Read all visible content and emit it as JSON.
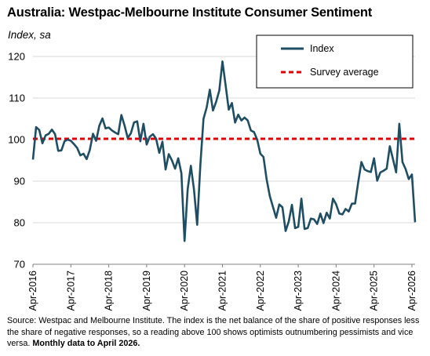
{
  "title": "Australia: Westpac-Melbourne Institute Consumer Sentiment",
  "subtitle": "Index, sa",
  "source_text": "Source: Westpac and Melbourne Institute.  The index is the net balance of the share of positive responses less the share of negative responses, so a reading above 100 shows optimists outnumbering pessimists and vice versa.",
  "source_bold": "Monthly data to April 2026.",
  "chart_data": {
    "type": "line",
    "ylim": [
      70,
      120
    ],
    "yticks": [
      70,
      80,
      90,
      100,
      110,
      120
    ],
    "x_start": "2016-04",
    "x_end": "2026-04",
    "xtick_labels": [
      "Apr-2016",
      "Apr-2017",
      "Apr-2018",
      "Apr-2019",
      "Apr-2020",
      "Apr-2021",
      "Apr-2022",
      "Apr-2023",
      "Apr-2024",
      "Apr-2025",
      "Apr-2026"
    ],
    "grid": true,
    "legend_position": "top-right",
    "colors": {
      "index": "#1f4e63",
      "average": "#e00000"
    },
    "series": [
      {
        "name": "Index",
        "values": [
          95.2,
          103.0,
          102.3,
          99.1,
          101.0,
          101.4,
          102.4,
          101.3,
          97.3,
          97.4,
          99.6,
          100.0,
          99.7,
          98.9,
          98.0,
          96.2,
          96.6,
          95.3,
          97.5,
          101.4,
          99.7,
          103.3,
          105.1,
          102.7,
          102.9,
          102.2,
          101.7,
          101.3,
          105.9,
          103.4,
          100.4,
          101.5,
          104.1,
          104.4,
          99.6,
          103.8,
          98.8,
          100.7,
          101.3,
          100.2,
          96.8,
          99.5,
          92.8,
          96.5,
          95.0,
          93.0,
          95.5,
          91.9,
          75.6,
          88.1,
          93.7,
          87.9,
          79.5,
          93.8,
          105.0,
          107.7,
          112.0,
          107.0,
          109.1,
          111.8,
          118.8,
          113.1,
          107.2,
          108.8,
          104.1,
          106.0,
          104.6,
          105.3,
          104.6,
          102.2,
          101.8,
          100.0,
          96.6,
          95.8,
          90.4,
          86.4,
          83.8,
          81.2,
          84.4,
          83.7,
          78.0,
          80.3,
          84.3,
          78.7,
          79.0,
          85.8,
          78.5,
          78.7,
          81.0,
          80.8,
          79.7,
          82.2,
          79.9,
          82.4,
          81.0,
          85.8,
          84.4,
          82.2,
          82.0,
          83.3,
          82.7,
          84.6,
          84.6,
          89.8,
          94.6,
          92.8,
          92.4,
          92.2,
          95.5,
          90.1,
          92.1,
          92.5,
          93.0,
          98.4,
          95.3,
          92.1,
          103.8,
          94.6,
          92.9,
          90.5,
          91.6,
          80.1
        ]
      },
      {
        "name": "Survey average",
        "value": 100.2
      }
    ]
  }
}
